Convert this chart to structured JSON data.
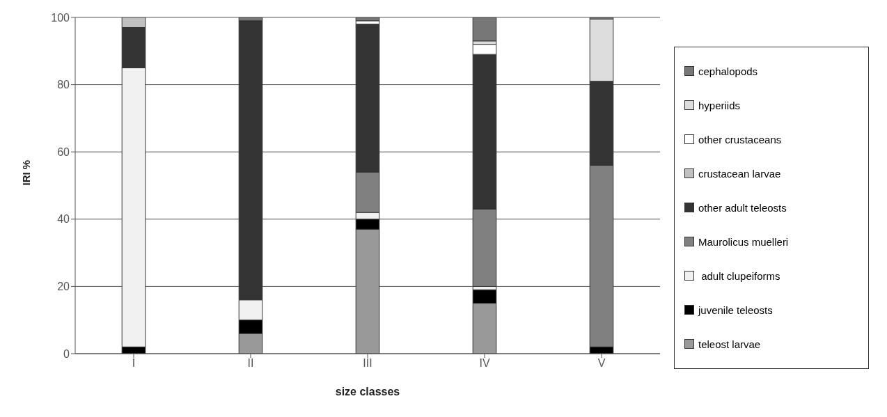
{
  "chart_data": {
    "type": "bar",
    "stacked": true,
    "xlabel": "size classes",
    "ylabel": "IRI %",
    "categories": [
      "I",
      "II",
      "III",
      "IV",
      "V"
    ],
    "series": [
      {
        "name": "teleost larvae",
        "color": "#999999",
        "values": [
          0,
          6,
          37,
          15,
          0
        ]
      },
      {
        "name": "juvenile teleosts",
        "color": "#000000",
        "values": [
          2,
          4,
          3,
          4,
          2
        ]
      },
      {
        "name": " adult clupeiforms",
        "color": "#f0f0f0",
        "values": [
          83,
          6,
          2,
          1,
          0
        ]
      },
      {
        "name": "Maurolicus muelleri",
        "color": "#808080",
        "values": [
          0,
          0,
          12,
          23,
          54
        ]
      },
      {
        "name": "other adult teleosts",
        "color": "#333333",
        "values": [
          12,
          83,
          44,
          46,
          25
        ]
      },
      {
        "name": "crustacean larvae",
        "color": "#c0c0c0",
        "values": [
          3,
          0,
          0,
          0,
          0
        ]
      },
      {
        "name": "other crustaceans",
        "color": "#ffffff",
        "values": [
          0,
          0,
          1,
          3,
          0
        ]
      },
      {
        "name": "hyperiids",
        "color": "#dddddd",
        "values": [
          0,
          0,
          0,
          1,
          18.5
        ]
      },
      {
        "name": "cephalopods",
        "color": "#777777",
        "values": [
          0,
          1,
          1,
          7,
          0.5
        ]
      }
    ],
    "ylim": [
      0,
      100
    ],
    "yticks": [
      0,
      20,
      40,
      60,
      80,
      100
    ],
    "grid": "y",
    "legend": "right"
  }
}
